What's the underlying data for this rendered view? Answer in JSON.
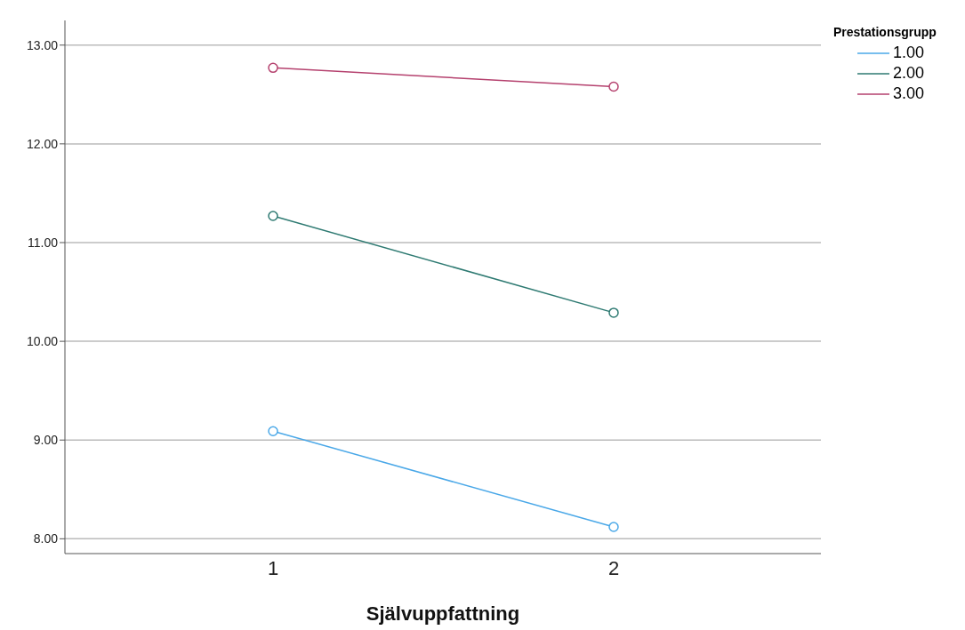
{
  "chart_data": {
    "type": "line",
    "xlabel": "Självuppfattning",
    "legend_title": "Prestationsgrupp",
    "categories": [
      "1",
      "2"
    ],
    "series": [
      {
        "name": "1.00",
        "color": "#4aa8e8",
        "values": [
          9.09,
          8.12
        ]
      },
      {
        "name": "2.00",
        "color": "#2e7a72",
        "values": [
          11.27,
          10.29
        ]
      },
      {
        "name": "3.00",
        "color": "#b5416e",
        "values": [
          12.77,
          12.58
        ]
      }
    ],
    "ylim": [
      7.85,
      13.25
    ],
    "yticks": [
      {
        "value": 8,
        "label": "8.00"
      },
      {
        "value": 9,
        "label": "9.00"
      },
      {
        "value": 10,
        "label": "10.00"
      },
      {
        "value": 11,
        "label": "11.00"
      },
      {
        "value": 12,
        "label": "12.00"
      },
      {
        "value": 13,
        "label": "13.00"
      }
    ],
    "grid": "y",
    "legend": "top right",
    "marker": "circle",
    "line_style": "solid"
  }
}
